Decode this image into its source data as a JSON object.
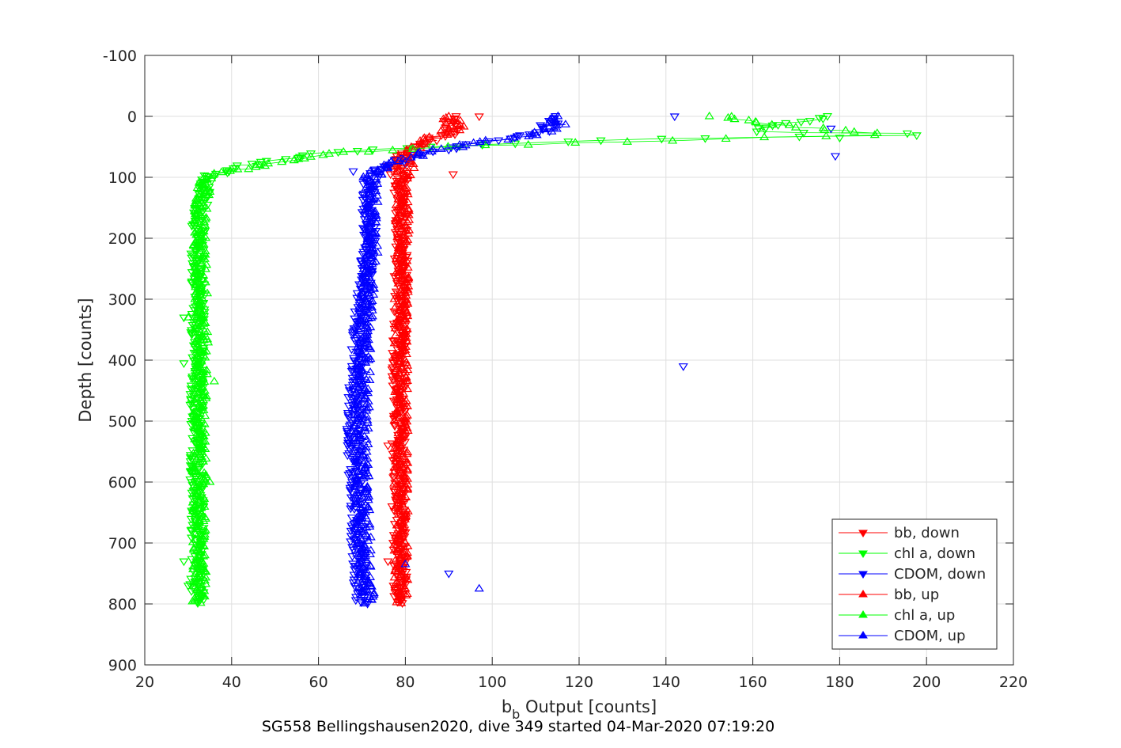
{
  "chart_data": {
    "type": "scatter",
    "xlabel_main": "b",
    "xlabel_sub": "b",
    "xlabel_rest": " Output [counts]",
    "ylabel": "Depth [counts]",
    "caption": "SG558 Bellingshausen2020, dive 349 started 04-Mar-2020 07:19:20",
    "xlim": [
      20,
      220
    ],
    "ylim": [
      -100,
      900
    ],
    "y_reversed": true,
    "x_ticks": [
      20,
      40,
      60,
      80,
      100,
      120,
      140,
      160,
      180,
      200,
      220
    ],
    "y_ticks": [
      -100,
      0,
      100,
      200,
      300,
      400,
      500,
      600,
      700,
      800,
      900
    ],
    "grid": true,
    "legend_position": "lower-right",
    "series": [
      {
        "name": "bb, down",
        "color": "#ff0000",
        "marker": "triangle-down",
        "profile": [
          [
            0,
            91
          ],
          [
            10,
            90
          ],
          [
            25,
            91
          ],
          [
            40,
            85
          ],
          [
            55,
            80
          ],
          [
            80,
            78
          ],
          [
            100,
            79
          ],
          [
            150,
            79
          ],
          [
            200,
            79
          ],
          [
            300,
            79
          ],
          [
            400,
            78.5
          ],
          [
            500,
            78.5
          ],
          [
            600,
            78.5
          ],
          [
            700,
            78.5
          ],
          [
            800,
            79
          ]
        ],
        "outliers": [
          [
            0,
            97
          ],
          [
            95,
            91
          ],
          [
            540,
            76
          ],
          [
            730,
            76
          ]
        ]
      },
      {
        "name": "chl a, down",
        "color": "#00ff00",
        "marker": "triangle-down",
        "profile": [
          [
            0,
            178
          ],
          [
            10,
            170
          ],
          [
            25,
            160
          ],
          [
            30,
            207
          ],
          [
            35,
            150
          ],
          [
            45,
            100
          ],
          [
            60,
            62
          ],
          [
            70,
            52
          ],
          [
            80,
            44
          ],
          [
            90,
            38
          ],
          [
            100,
            34
          ],
          [
            150,
            33
          ],
          [
            200,
            32
          ],
          [
            300,
            32.5
          ],
          [
            400,
            32
          ],
          [
            500,
            32
          ],
          [
            600,
            32
          ],
          [
            700,
            32
          ],
          [
            800,
            32
          ]
        ],
        "outliers": [
          [
            35,
            180
          ],
          [
            405,
            29
          ],
          [
            330,
            29
          ],
          [
            770,
            30
          ],
          [
            730,
            29
          ]
        ]
      },
      {
        "name": "CDOM, down",
        "color": "#0000ff",
        "marker": "triangle-down",
        "profile": [
          [
            0,
            114
          ],
          [
            10,
            114
          ],
          [
            25,
            112
          ],
          [
            40,
            100
          ],
          [
            55,
            88
          ],
          [
            70,
            80
          ],
          [
            90,
            74
          ],
          [
            100,
            72
          ],
          [
            150,
            71
          ],
          [
            200,
            72
          ],
          [
            300,
            70
          ],
          [
            400,
            69
          ],
          [
            500,
            68
          ],
          [
            600,
            68.5
          ],
          [
            700,
            69
          ],
          [
            800,
            70
          ]
        ],
        "outliers": [
          [
            0,
            142
          ],
          [
            20,
            178
          ],
          [
            65,
            179
          ],
          [
            410,
            144
          ],
          [
            750,
            90
          ],
          [
            90,
            68
          ]
        ]
      },
      {
        "name": "bb, up",
        "color": "#ff0000",
        "marker": "triangle-up",
        "profile": [
          [
            0,
            90
          ],
          [
            10,
            91
          ],
          [
            20,
            92
          ],
          [
            35,
            86
          ],
          [
            50,
            82
          ],
          [
            70,
            80
          ],
          [
            100,
            79
          ],
          [
            200,
            79.5
          ],
          [
            300,
            79
          ],
          [
            400,
            79
          ],
          [
            500,
            79
          ],
          [
            600,
            79
          ],
          [
            700,
            79
          ],
          [
            800,
            79
          ]
        ],
        "outliers": [
          [
            85,
            82
          ]
        ]
      },
      {
        "name": "chl a, up",
        "color": "#00ff00",
        "marker": "triangle-up",
        "profile": [
          [
            0,
            155
          ],
          [
            10,
            160
          ],
          [
            20,
            175
          ],
          [
            30,
            190
          ],
          [
            38,
            150
          ],
          [
            50,
            90
          ],
          [
            60,
            64
          ],
          [
            75,
            50
          ],
          [
            90,
            40
          ],
          [
            100,
            34
          ],
          [
            150,
            33
          ],
          [
            200,
            32.5
          ],
          [
            300,
            33
          ],
          [
            400,
            33
          ],
          [
            500,
            32.5
          ],
          [
            600,
            32.5
          ],
          [
            700,
            32.5
          ],
          [
            800,
            32.5
          ]
        ],
        "outliers": [
          [
            0,
            150
          ],
          [
            435,
            36
          ],
          [
            600,
            35
          ],
          [
            330,
            30
          ]
        ]
      },
      {
        "name": "CDOM, up",
        "color": "#0000ff",
        "marker": "triangle-up",
        "profile": [
          [
            0,
            115
          ],
          [
            15,
            115
          ],
          [
            30,
            110
          ],
          [
            45,
            95
          ],
          [
            60,
            85
          ],
          [
            75,
            78
          ],
          [
            90,
            74
          ],
          [
            100,
            72
          ],
          [
            200,
            72.5
          ],
          [
            300,
            71
          ],
          [
            400,
            70.5
          ],
          [
            500,
            70
          ],
          [
            600,
            70
          ],
          [
            700,
            70.5
          ],
          [
            800,
            71.5
          ]
        ],
        "outliers": [
          [
            775,
            97
          ],
          [
            735,
            80
          ],
          [
            20,
            112
          ]
        ]
      }
    ]
  }
}
